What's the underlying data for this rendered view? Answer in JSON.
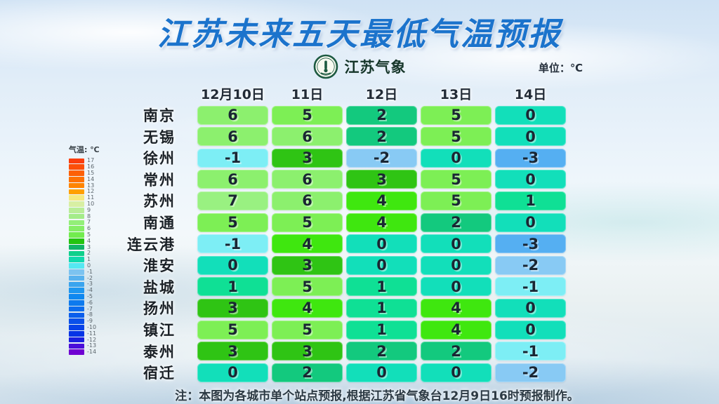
{
  "header": {
    "title": "江苏未来五天最低气温预报",
    "unit_label": "单位：℃"
  },
  "brand": {
    "name": "江苏气象"
  },
  "legend": {
    "title": "气温: ℃",
    "items": [
      {
        "value": 17,
        "color": "#fb3d0d"
      },
      {
        "value": 16,
        "color": "#fc4f09"
      },
      {
        "value": 15,
        "color": "#fd6006"
      },
      {
        "value": 14,
        "color": "#fe7203"
      },
      {
        "value": 13,
        "color": "#ff8401"
      },
      {
        "value": 12,
        "color": "#ffa000"
      },
      {
        "value": 11,
        "color": "#f5e97e"
      },
      {
        "value": 10,
        "color": "#d8efa3"
      },
      {
        "value": 9,
        "color": "#b9ed97"
      },
      {
        "value": 8,
        "color": "#a4ec89"
      },
      {
        "value": 7,
        "color": "#93ef78"
      },
      {
        "value": 6,
        "color": "#85ee66"
      },
      {
        "value": 5,
        "color": "#72ec4e"
      },
      {
        "value": 4,
        "color": "#24c40f"
      },
      {
        "value": 3,
        "color": "#12b467"
      },
      {
        "value": 2,
        "color": "#0ed08b"
      },
      {
        "value": 1,
        "color": "#0fd9ac"
      },
      {
        "value": 0,
        "color": "#55e8f2"
      },
      {
        "value": -1,
        "color": "#7cc3f0"
      },
      {
        "value": -2,
        "color": "#58b2ee"
      },
      {
        "value": -3,
        "color": "#3aa4ee"
      },
      {
        "value": -4,
        "color": "#1e97f0"
      },
      {
        "value": -5,
        "color": "#0f88f0"
      },
      {
        "value": -6,
        "color": "#0d7aee"
      },
      {
        "value": -7,
        "color": "#0c6cee"
      },
      {
        "value": -8,
        "color": "#0a5eec"
      },
      {
        "value": -9,
        "color": "#0950ea"
      },
      {
        "value": -10,
        "color": "#0742e8"
      },
      {
        "value": -11,
        "color": "#0534e6"
      },
      {
        "value": -12,
        "color": "#1a1fe0"
      },
      {
        "value": -13,
        "color": "#4a0eda"
      },
      {
        "value": -14,
        "color": "#6f00d2"
      }
    ]
  },
  "colormap": {
    "7": "#99f181",
    "6": "#8cf06e",
    "5": "#7def55",
    "4": "#3fe70f",
    "3": "#2fc414",
    "2": "#13c97e",
    "1": "#0fe095",
    "0": "#12dfba",
    "-1": "#7deef5",
    "-2": "#88caf4",
    "-3": "#55aff2"
  },
  "table": {
    "columns": [
      "12月10日",
      "11日",
      "12日",
      "13日",
      "14日"
    ],
    "rows": [
      {
        "city": "南京",
        "values": [
          6,
          5,
          2,
          5,
          0
        ]
      },
      {
        "city": "无锡",
        "values": [
          6,
          6,
          2,
          5,
          0
        ]
      },
      {
        "city": "徐州",
        "values": [
          -1,
          3,
          -2,
          0,
          -3
        ]
      },
      {
        "city": "常州",
        "values": [
          6,
          6,
          3,
          5,
          0
        ]
      },
      {
        "city": "苏州",
        "values": [
          7,
          6,
          4,
          5,
          1
        ]
      },
      {
        "city": "南通",
        "values": [
          5,
          5,
          4,
          2,
          0
        ]
      },
      {
        "city": "连云港",
        "values": [
          -1,
          4,
          0,
          0,
          -3
        ]
      },
      {
        "city": "淮安",
        "values": [
          0,
          3,
          0,
          0,
          -2
        ]
      },
      {
        "city": "盐城",
        "values": [
          1,
          5,
          1,
          0,
          -1
        ]
      },
      {
        "city": "扬州",
        "values": [
          3,
          4,
          1,
          4,
          0
        ]
      },
      {
        "city": "镇江",
        "values": [
          5,
          5,
          1,
          4,
          0
        ]
      },
      {
        "city": "泰州",
        "values": [
          3,
          3,
          2,
          2,
          -1
        ]
      },
      {
        "city": "宿迁",
        "values": [
          0,
          2,
          0,
          0,
          -2
        ]
      }
    ]
  },
  "note": "注：本图为各城市单个站点预报,根据江苏省气象台12月9日16时预报制作。",
  "colors": {
    "title_blue": "#1b73cc",
    "brand_green": "#1d5a41",
    "cell_text": "#1a2633",
    "note_text": "#2c3a44"
  },
  "chart_data": {
    "type": "heatmap",
    "title": "江苏未来五天最低气温预报",
    "unit": "℃",
    "x": [
      "12月10日",
      "11日",
      "12日",
      "13日",
      "14日"
    ],
    "y": [
      "南京",
      "无锡",
      "徐州",
      "常州",
      "苏州",
      "南通",
      "连云港",
      "淮安",
      "盐城",
      "扬州",
      "镇江",
      "泰州",
      "宿迁"
    ],
    "values": [
      [
        6,
        5,
        2,
        5,
        0
      ],
      [
        6,
        6,
        2,
        5,
        0
      ],
      [
        -1,
        3,
        -2,
        0,
        -3
      ],
      [
        6,
        6,
        3,
        5,
        0
      ],
      [
        7,
        6,
        4,
        5,
        1
      ],
      [
        5,
        5,
        4,
        2,
        0
      ],
      [
        -1,
        4,
        0,
        0,
        -3
      ],
      [
        0,
        3,
        0,
        0,
        -2
      ],
      [
        1,
        5,
        1,
        0,
        -1
      ],
      [
        3,
        4,
        1,
        4,
        0
      ],
      [
        5,
        5,
        1,
        4,
        0
      ],
      [
        3,
        3,
        2,
        2,
        -1
      ],
      [
        0,
        2,
        0,
        0,
        -2
      ]
    ],
    "colorbar_range": [
      -14,
      17
    ],
    "legend_position": "left",
    "grid": false
  }
}
